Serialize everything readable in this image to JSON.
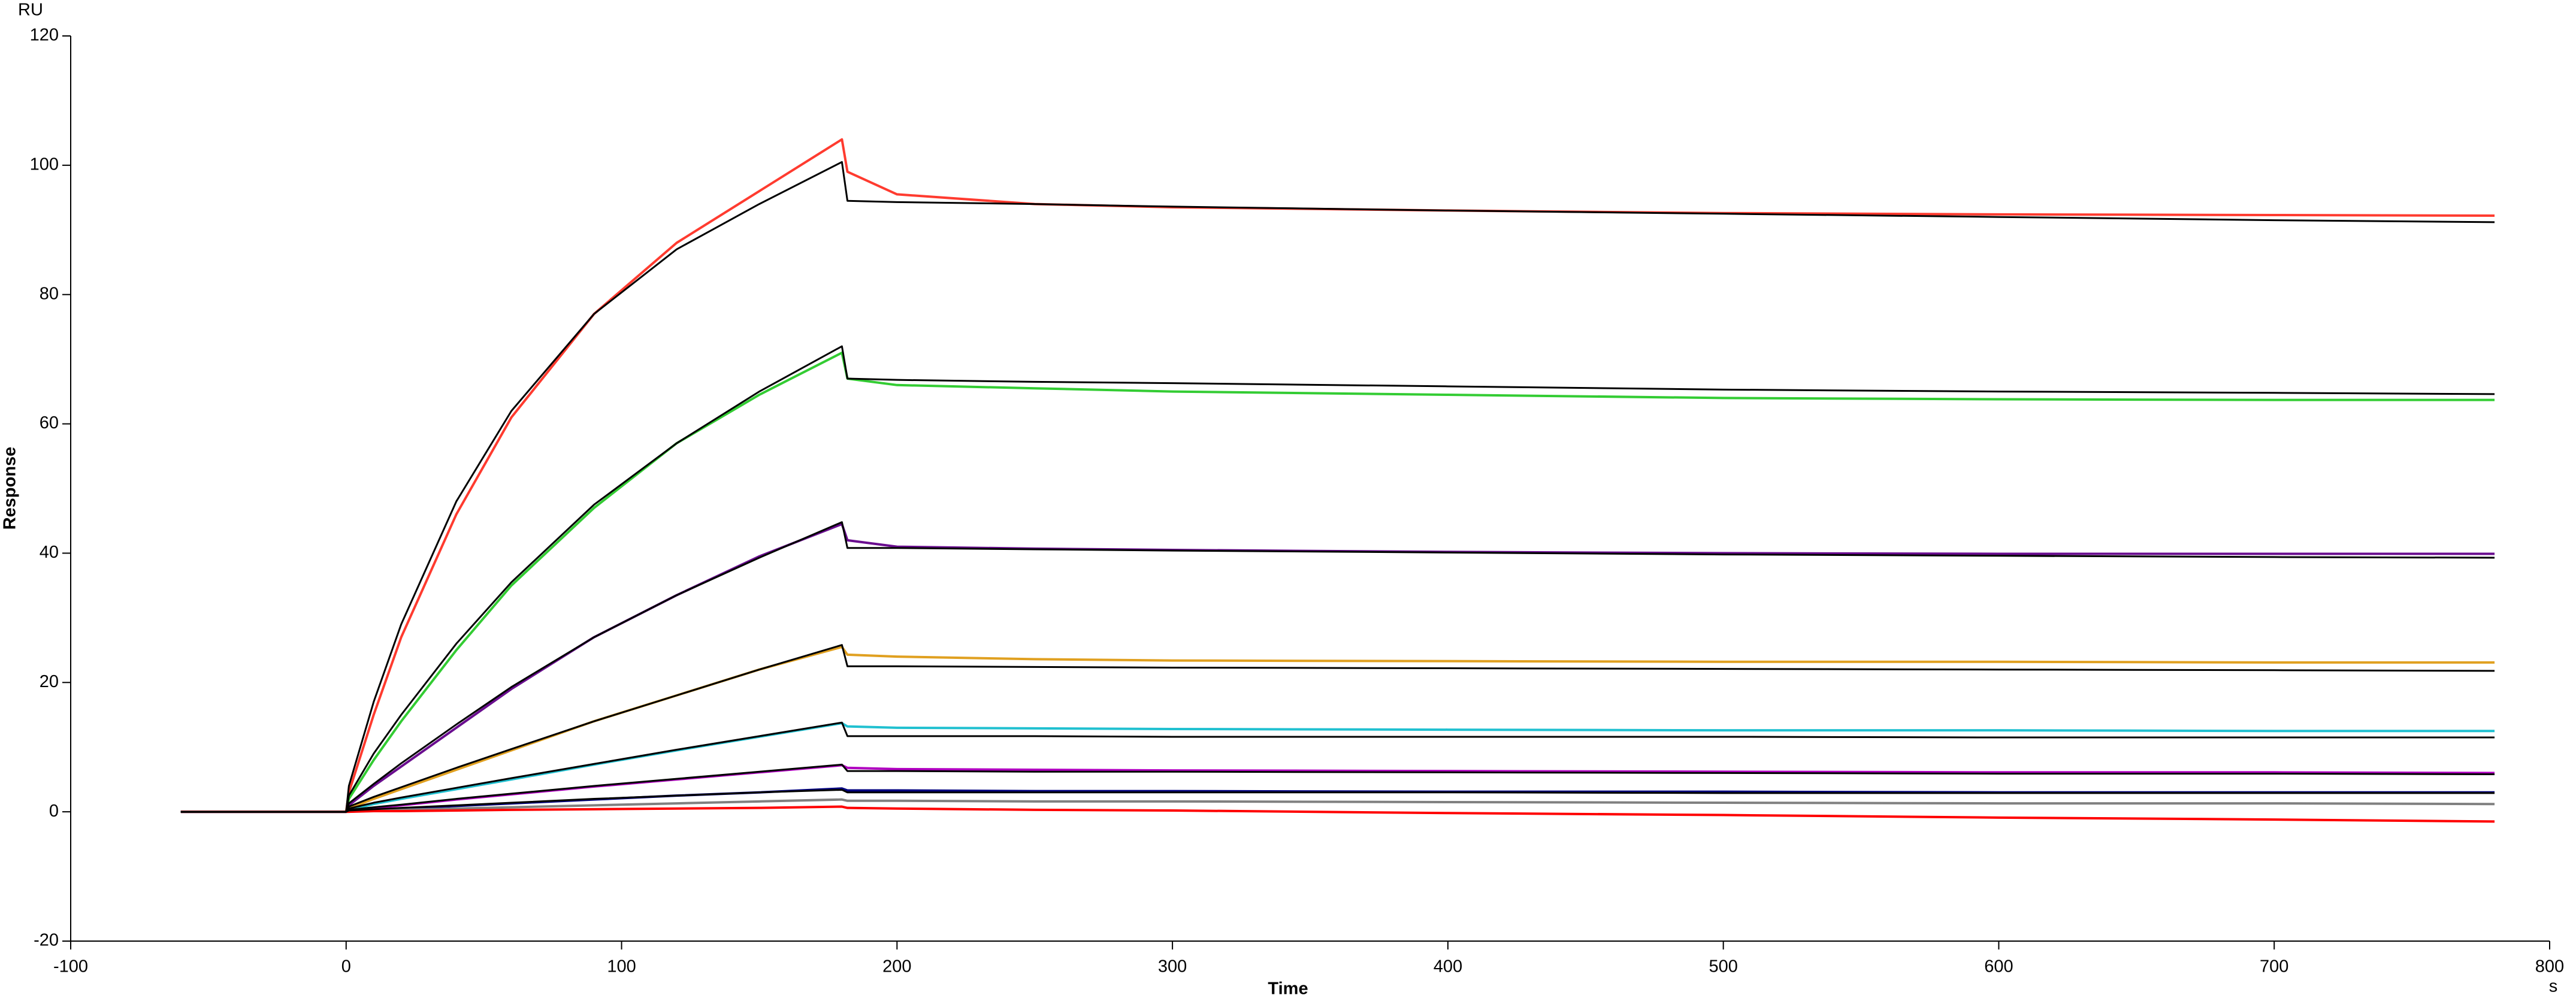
{
  "chart_data": {
    "type": "line",
    "y_unit": "RU",
    "x_unit": "s",
    "xlabel": "Time",
    "ylabel": "Response",
    "xlim": [
      -100,
      800
    ],
    "xticks": [
      -100,
      0,
      100,
      200,
      300,
      400,
      500,
      600,
      700,
      800
    ],
    "ylim": [
      -20,
      120
    ],
    "yticks": [
      -20,
      0,
      20,
      40,
      60,
      80,
      100,
      120
    ],
    "x": [
      -60,
      0,
      1,
      10,
      20,
      40,
      60,
      90,
      120,
      150,
      180,
      182,
      200,
      250,
      300,
      400,
      500,
      600,
      700,
      780
    ],
    "series": [
      {
        "color": "#ff3b2f",
        "values": [
          0,
          0,
          3,
          15,
          27,
          46,
          61,
          77,
          88,
          96,
          104,
          99,
          95.5,
          94,
          93.5,
          93,
          92.6,
          92.4,
          92.3,
          92.2
        ]
      },
      {
        "color": "#33cc33",
        "values": [
          0,
          0,
          2,
          8,
          14,
          25,
          35,
          47,
          57,
          64.5,
          71,
          67,
          66,
          65.5,
          65,
          64.5,
          64,
          63.8,
          63.7,
          63.7
        ]
      },
      {
        "color": "#6a0d8f",
        "values": [
          0,
          0,
          1,
          4,
          7,
          13,
          19,
          27,
          33.5,
          39.5,
          44.5,
          42,
          41,
          40.7,
          40.5,
          40.2,
          40,
          39.9,
          39.9,
          39.9
        ]
      },
      {
        "color": "#e0a020",
        "values": [
          0,
          0,
          0.5,
          2,
          3.5,
          6.5,
          9.5,
          14,
          18,
          22,
          25.5,
          24.3,
          24,
          23.6,
          23.4,
          23.3,
          23.2,
          23.2,
          23.1,
          23.1
        ]
      },
      {
        "color": "#20c0d0",
        "values": [
          0,
          0,
          0.3,
          1.2,
          2,
          3.5,
          5,
          7.3,
          9.5,
          11.6,
          13.7,
          13.2,
          13,
          12.9,
          12.8,
          12.7,
          12.6,
          12.6,
          12.5,
          12.5
        ]
      },
      {
        "color": "#b000c0",
        "values": [
          0,
          0,
          0.1,
          0.6,
          1,
          1.9,
          2.7,
          3.9,
          5,
          6.1,
          7.2,
          6.8,
          6.6,
          6.5,
          6.4,
          6.3,
          6.2,
          6.1,
          6.1,
          6
        ]
      },
      {
        "color": "#000080",
        "values": [
          0,
          0,
          0.1,
          0.3,
          0.5,
          0.9,
          1.3,
          1.9,
          2.5,
          3,
          3.6,
          3.3,
          3.3,
          3.2,
          3.2,
          3.1,
          3.1,
          3,
          3,
          3
        ]
      },
      {
        "color": "#808080",
        "values": [
          0,
          0,
          0,
          0.2,
          0.3,
          0.5,
          0.7,
          1,
          1.3,
          1.6,
          1.9,
          1.7,
          1.7,
          1.6,
          1.6,
          1.5,
          1.4,
          1.3,
          1.3,
          1.2
        ]
      },
      {
        "color": "#ff0000",
        "values": [
          0,
          0,
          0,
          0.1,
          0.1,
          0.2,
          0.3,
          0.4,
          0.5,
          0.6,
          0.8,
          0.6,
          0.5,
          0.3,
          0.2,
          -0.2,
          -0.5,
          -0.9,
          -1.2,
          -1.5
        ]
      },
      {
        "color": "#000000",
        "values": [
          0,
          0,
          4,
          17,
          29,
          48,
          62,
          77,
          87,
          94,
          100.5,
          94.5,
          94.3,
          94,
          93.6,
          93,
          92.5,
          92,
          91.5,
          91.2
        ]
      },
      {
        "color": "#000000",
        "values": [
          0,
          0,
          2.5,
          9,
          15,
          26,
          35.5,
          47.5,
          57,
          65,
          72,
          67,
          66.8,
          66.5,
          66.3,
          65.8,
          65.3,
          65,
          64.8,
          64.6
        ]
      },
      {
        "color": "#000000",
        "values": [
          0,
          0,
          1.3,
          4.3,
          7.5,
          13.5,
          19.3,
          27,
          33.5,
          39.3,
          44.8,
          40.8,
          40.8,
          40.6,
          40.4,
          40.1,
          39.8,
          39.6,
          39.4,
          39.3
        ]
      },
      {
        "color": "#000000",
        "values": [
          0,
          0,
          0.8,
          2.3,
          3.8,
          6.8,
          9.7,
          14,
          18,
          22,
          25.8,
          22.5,
          22.5,
          22.4,
          22.3,
          22.2,
          22.1,
          22,
          21.9,
          21.8
        ]
      },
      {
        "color": "#000000",
        "values": [
          0,
          0,
          0.5,
          1.4,
          2.2,
          3.7,
          5.2,
          7.4,
          9.6,
          11.7,
          13.8,
          11.7,
          11.7,
          11.7,
          11.6,
          11.6,
          11.6,
          11.5,
          11.5,
          11.5
        ]
      },
      {
        "color": "#000000",
        "values": [
          0,
          0,
          0.3,
          0.7,
          1.1,
          2,
          2.8,
          4,
          5.1,
          6.2,
          7.3,
          6.3,
          6.3,
          6.2,
          6.2,
          6.1,
          6,
          5.9,
          5.9,
          5.8
        ]
      },
      {
        "color": "#000000",
        "values": [
          0,
          0,
          0.2,
          0.4,
          0.6,
          1,
          1.4,
          2,
          2.5,
          3,
          3.4,
          3,
          3,
          3,
          3,
          3,
          2.9,
          2.9,
          2.9,
          2.9
        ]
      }
    ]
  }
}
